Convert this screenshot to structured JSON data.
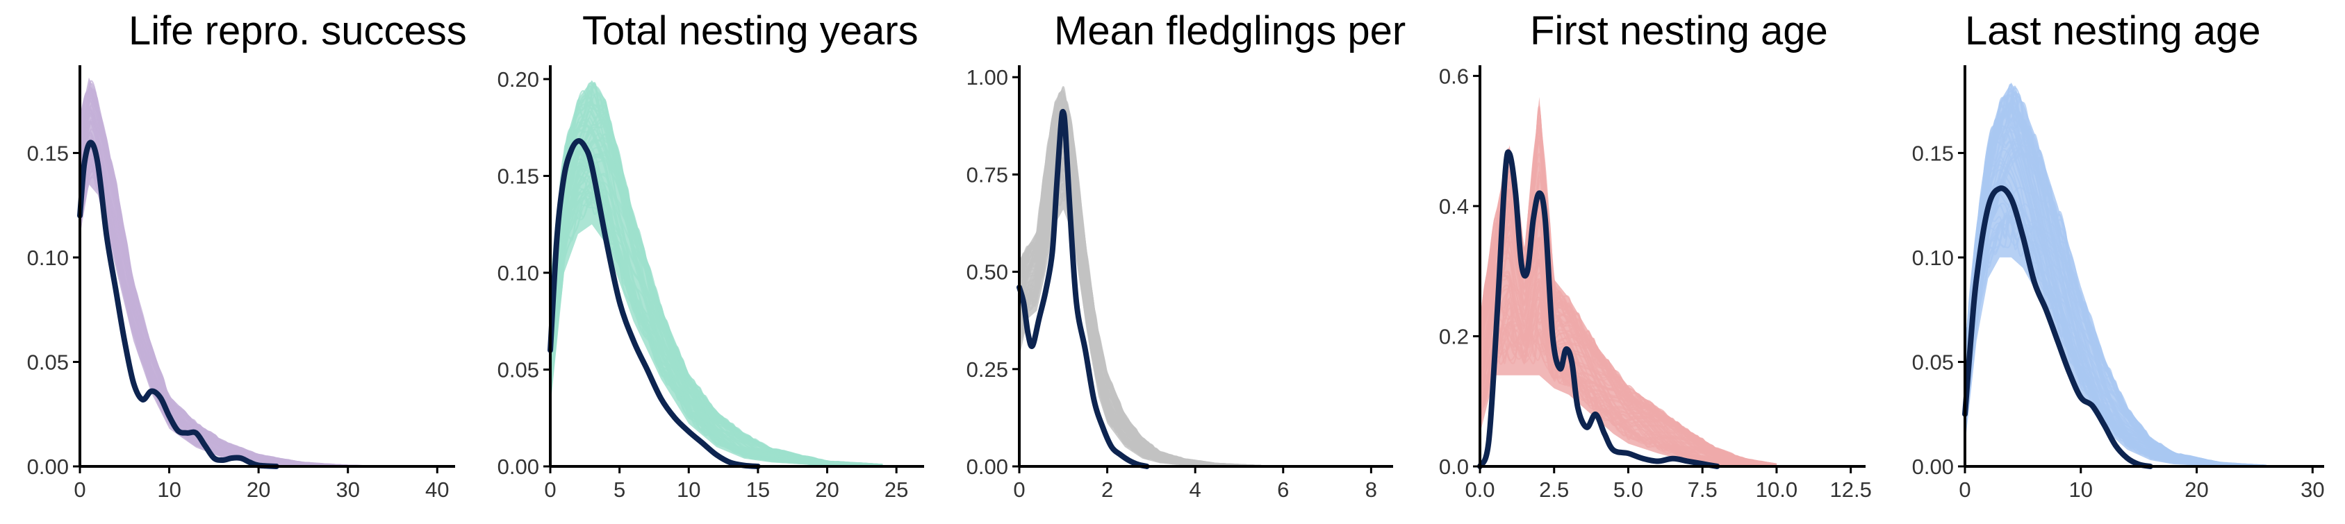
{
  "colors": {
    "observed": "#0d2450",
    "panel_fills": [
      "#c4b0d8",
      "#9ee0cd",
      "#c2c2c2",
      "#efaaaa",
      "#a9c8f2"
    ]
  },
  "chart_data": [
    {
      "type": "line",
      "title": "Life repro. success",
      "xlabel": "",
      "ylabel": "",
      "xlim": [
        0,
        42
      ],
      "ylim": [
        0,
        0.19
      ],
      "x_ticks": [
        0,
        10,
        20,
        30,
        40
      ],
      "y_ticks": [
        0.0,
        0.05,
        0.1,
        0.15
      ],
      "x_tick_labels": [
        "0",
        "10",
        "20",
        "30",
        "40"
      ],
      "y_tick_labels": [
        "0.00",
        "0.05",
        "0.10",
        "0.15"
      ],
      "grid": false,
      "simulated_band": {
        "x": [
          0,
          1,
          2,
          4,
          6,
          8,
          10,
          13,
          16,
          20,
          25,
          30,
          35
        ],
        "lower": [
          0.11,
          0.135,
          0.13,
          0.095,
          0.06,
          0.035,
          0.018,
          0.009,
          0.004,
          0.001,
          0.0002,
          0,
          0
        ],
        "upper": [
          0.17,
          0.19,
          0.18,
          0.14,
          0.09,
          0.06,
          0.035,
          0.022,
          0.013,
          0.006,
          0.002,
          0.0005,
          0
        ]
      },
      "observed": {
        "x": [
          0,
          0.5,
          1.2,
          2,
          3,
          4,
          5,
          6,
          7,
          8,
          9,
          10,
          11,
          12,
          13,
          14,
          15,
          16,
          17,
          18,
          19,
          20,
          22
        ],
        "y": [
          0.12,
          0.145,
          0.155,
          0.145,
          0.11,
          0.085,
          0.06,
          0.04,
          0.032,
          0.036,
          0.033,
          0.024,
          0.017,
          0.016,
          0.016,
          0.01,
          0.004,
          0.003,
          0.004,
          0.004,
          0.002,
          0.0005,
          0
        ]
      }
    },
    {
      "type": "line",
      "title": "Total nesting years",
      "xlabel": "",
      "ylabel": "",
      "xlim": [
        0,
        27
      ],
      "ylim": [
        0,
        0.205
      ],
      "x_ticks": [
        0,
        5,
        10,
        15,
        20,
        25
      ],
      "y_ticks": [
        0.0,
        0.05,
        0.1,
        0.15,
        0.2
      ],
      "x_tick_labels": [
        "0",
        "5",
        "10",
        "15",
        "20",
        "25"
      ],
      "y_tick_labels": [
        "0.00",
        "0.05",
        "0.10",
        "0.15",
        "0.20"
      ],
      "grid": false,
      "simulated_band": {
        "x": [
          0,
          1,
          2,
          3,
          4,
          5,
          6,
          8,
          10,
          12,
          14,
          16,
          20,
          24
        ],
        "lower": [
          0.03,
          0.1,
          0.12,
          0.125,
          0.115,
          0.095,
          0.075,
          0.045,
          0.022,
          0.01,
          0.004,
          0.002,
          0.0003,
          0
        ],
        "upper": [
          0.1,
          0.17,
          0.195,
          0.205,
          0.195,
          0.165,
          0.135,
          0.085,
          0.05,
          0.03,
          0.018,
          0.01,
          0.003,
          0.001
        ]
      },
      "observed": {
        "x": [
          0,
          0.5,
          1,
          1.5,
          2,
          2.5,
          3,
          4,
          5,
          6,
          7,
          8,
          9,
          10,
          11,
          12,
          13,
          14,
          15
        ],
        "y": [
          0.06,
          0.12,
          0.15,
          0.163,
          0.168,
          0.165,
          0.155,
          0.118,
          0.085,
          0.065,
          0.05,
          0.035,
          0.025,
          0.018,
          0.012,
          0.006,
          0.002,
          0.0005,
          0
        ]
      }
    },
    {
      "type": "line",
      "title": "Mean fledglings per",
      "xlabel": "",
      "ylabel": "",
      "xlim": [
        0,
        8.5
      ],
      "ylim": [
        0,
        1.02
      ],
      "x_ticks": [
        0,
        2,
        4,
        6,
        8
      ],
      "y_ticks": [
        0.0,
        0.25,
        0.5,
        0.75,
        1.0
      ],
      "x_tick_labels": [
        "0",
        "2",
        "4",
        "6",
        "8"
      ],
      "y_tick_labels": [
        "0.00",
        "0.25",
        "0.50",
        "0.75",
        "1.00"
      ],
      "grid": false,
      "simulated_band": {
        "x": [
          0,
          0.2,
          0.4,
          0.6,
          0.8,
          1.0,
          1.2,
          1.4,
          1.6,
          1.8,
          2.0,
          2.4,
          2.8,
          3.2,
          3.8,
          4.5,
          5.5
        ],
        "lower": [
          0.28,
          0.38,
          0.4,
          0.5,
          0.62,
          0.66,
          0.6,
          0.45,
          0.3,
          0.18,
          0.11,
          0.05,
          0.02,
          0.008,
          0.002,
          0,
          0
        ],
        "upper": [
          0.55,
          0.58,
          0.62,
          0.82,
          0.96,
          1.0,
          0.9,
          0.7,
          0.5,
          0.36,
          0.25,
          0.14,
          0.08,
          0.04,
          0.02,
          0.008,
          0.002
        ]
      },
      "observed": {
        "x": [
          0,
          0.1,
          0.2,
          0.3,
          0.45,
          0.6,
          0.75,
          0.85,
          0.95,
          1.0,
          1.05,
          1.15,
          1.3,
          1.5,
          1.7,
          1.9,
          2.1,
          2.3,
          2.5,
          2.7,
          2.9
        ],
        "y": [
          0.46,
          0.42,
          0.34,
          0.31,
          0.38,
          0.45,
          0.55,
          0.72,
          0.88,
          0.91,
          0.86,
          0.66,
          0.42,
          0.3,
          0.17,
          0.1,
          0.05,
          0.03,
          0.015,
          0.005,
          0
        ]
      }
    },
    {
      "type": "line",
      "title": "First nesting age",
      "xlabel": "",
      "ylabel": "",
      "xlim": [
        0,
        13
      ],
      "ylim": [
        0,
        0.61
      ],
      "x_ticks": [
        0,
        2.5,
        5,
        7.5,
        10,
        12.5
      ],
      "y_ticks": [
        0.0,
        0.2,
        0.4,
        0.6
      ],
      "x_tick_labels": [
        "0.0",
        "2.5",
        "5.0",
        "7.5",
        "10.0",
        "12.5"
      ],
      "y_tick_labels": [
        "0.0",
        "0.2",
        "0.4",
        "0.6"
      ],
      "grid": false,
      "simulated_band": {
        "x": [
          0,
          0.5,
          1,
          1.5,
          2,
          2.5,
          3,
          3.5,
          4,
          4.5,
          5,
          6,
          7,
          8,
          9,
          10
        ],
        "lower": [
          0.05,
          0.14,
          0.14,
          0.14,
          0.14,
          0.12,
          0.11,
          0.09,
          0.07,
          0.05,
          0.035,
          0.02,
          0.008,
          0.002,
          0,
          0
        ],
        "upper": [
          0.24,
          0.4,
          0.52,
          0.35,
          0.6,
          0.3,
          0.27,
          0.23,
          0.19,
          0.16,
          0.13,
          0.095,
          0.06,
          0.03,
          0.012,
          0.004
        ]
      },
      "observed": {
        "x": [
          0,
          0.3,
          0.6,
          0.85,
          1.0,
          1.2,
          1.4,
          1.6,
          1.8,
          2.0,
          2.2,
          2.45,
          2.7,
          2.9,
          3.1,
          3.3,
          3.6,
          3.9,
          4.2,
          4.5,
          5.0,
          5.5,
          6.0,
          6.5,
          7.0,
          7.5,
          8.0
        ],
        "y": [
          0.0,
          0.04,
          0.25,
          0.45,
          0.48,
          0.42,
          0.31,
          0.3,
          0.38,
          0.42,
          0.38,
          0.2,
          0.15,
          0.18,
          0.16,
          0.09,
          0.06,
          0.08,
          0.05,
          0.025,
          0.02,
          0.012,
          0.008,
          0.012,
          0.008,
          0.004,
          0
        ]
      }
    },
    {
      "type": "line",
      "title": "Last nesting age",
      "xlabel": "",
      "ylabel": "",
      "xlim": [
        0,
        31
      ],
      "ylim": [
        0,
        0.19
      ],
      "x_ticks": [
        0,
        10,
        20,
        30
      ],
      "y_ticks": [
        0.0,
        0.05,
        0.1,
        0.15
      ],
      "x_tick_labels": [
        "0",
        "10",
        "20",
        "30"
      ],
      "y_tick_labels": [
        "0.00",
        "0.05",
        "0.10",
        "0.15"
      ],
      "grid": false,
      "simulated_band": {
        "x": [
          0,
          1,
          2,
          3,
          4,
          5,
          6,
          8,
          10,
          12,
          14,
          16,
          18,
          22,
          26
        ],
        "lower": [
          0.01,
          0.06,
          0.09,
          0.1,
          0.1,
          0.095,
          0.085,
          0.06,
          0.035,
          0.018,
          0.008,
          0.003,
          0.001,
          0,
          0
        ],
        "upper": [
          0.06,
          0.12,
          0.16,
          0.18,
          0.19,
          0.18,
          0.165,
          0.13,
          0.09,
          0.055,
          0.03,
          0.015,
          0.007,
          0.002,
          0.0005
        ]
      },
      "observed": {
        "x": [
          0,
          0.5,
          1,
          2,
          3,
          4,
          5,
          6,
          7,
          8,
          9,
          10,
          11,
          12,
          13,
          14,
          15,
          16
        ],
        "y": [
          0.025,
          0.06,
          0.09,
          0.124,
          0.133,
          0.128,
          0.11,
          0.088,
          0.075,
          0.06,
          0.045,
          0.033,
          0.029,
          0.02,
          0.01,
          0.004,
          0.001,
          0
        ]
      }
    }
  ]
}
